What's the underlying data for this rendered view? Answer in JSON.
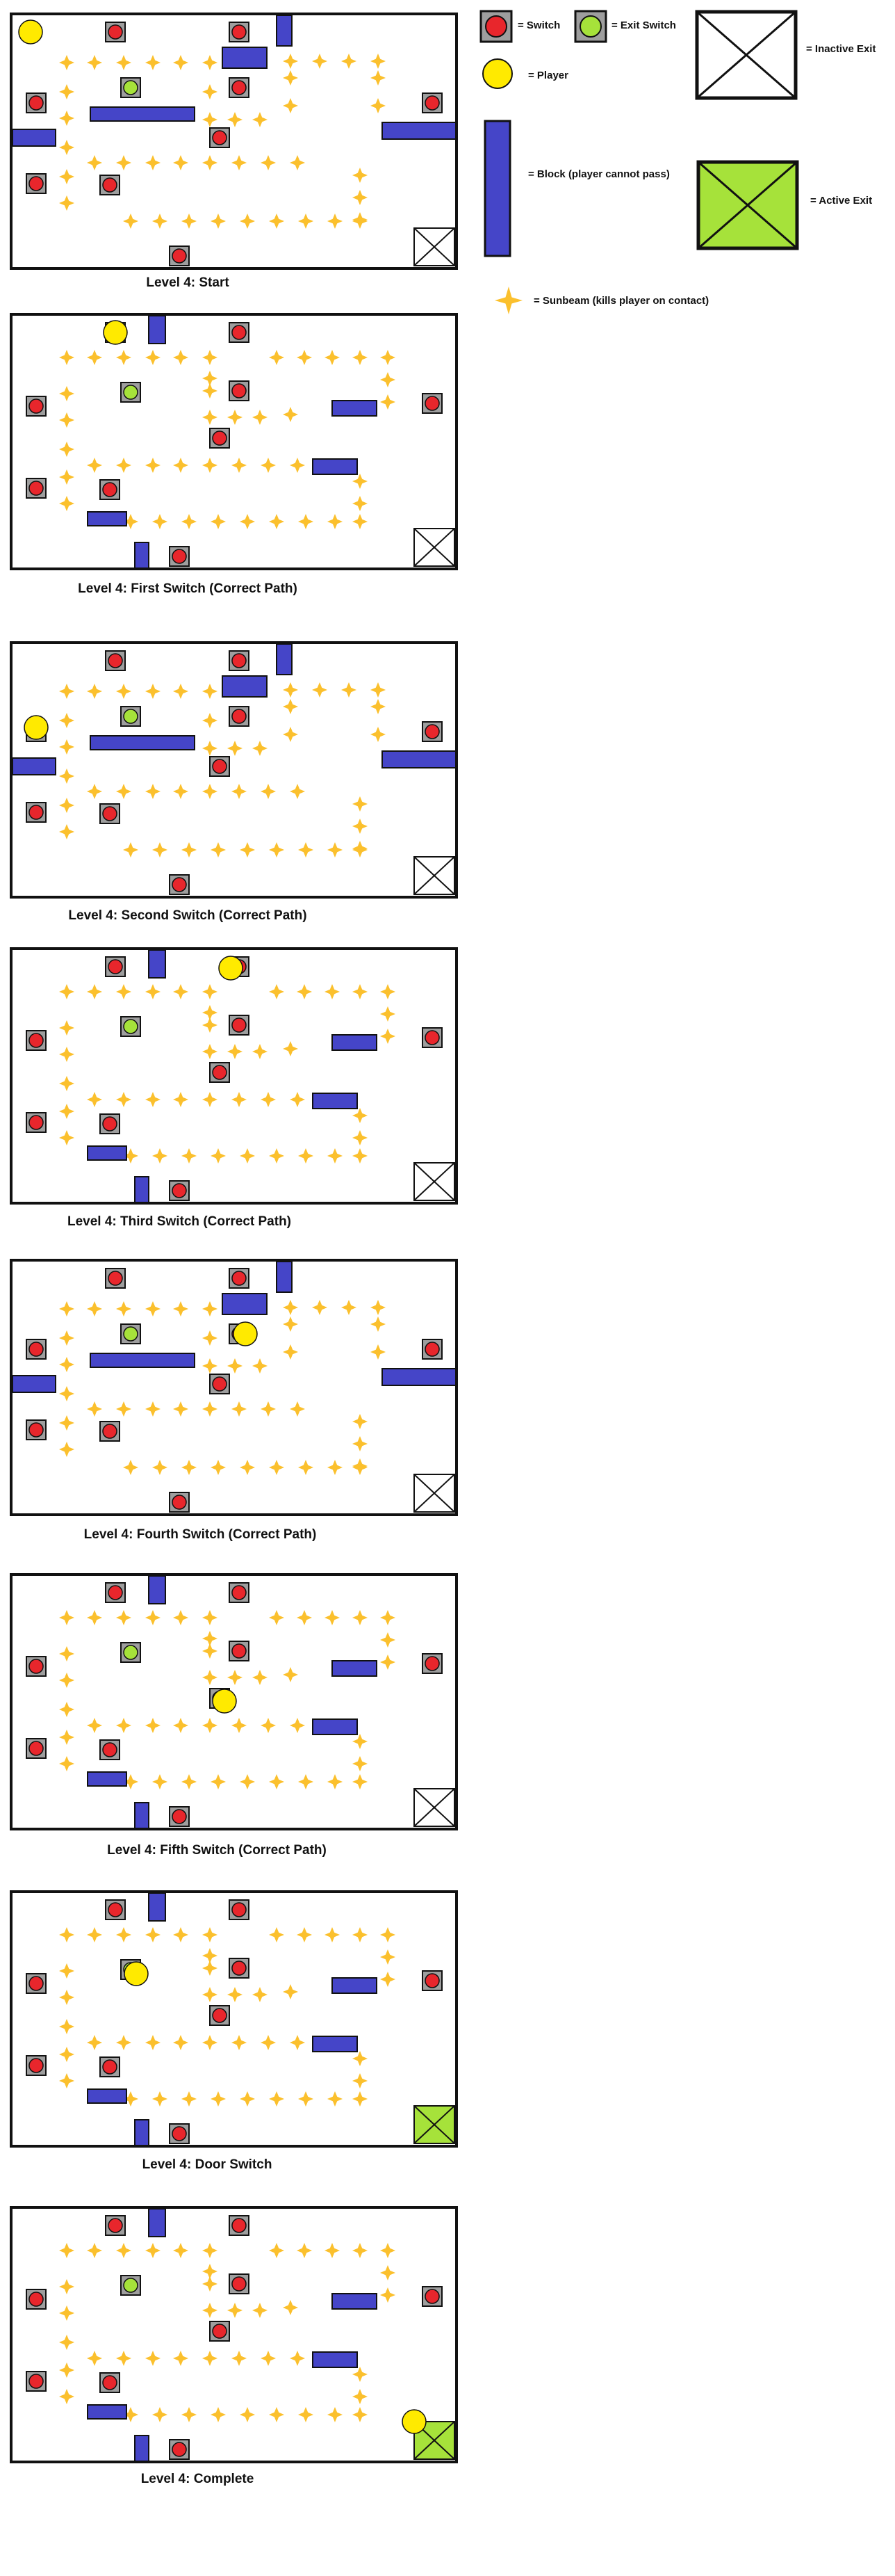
{
  "legend": {
    "switch": "= Switch",
    "exit_switch": "= Exit Switch",
    "player": "= Player",
    "block": "= Block (player cannot pass)",
    "sunbeam": "= Sunbeam (kills player on contact)",
    "inactive_exit": "= Inactive Exit",
    "active_exit": "= Active Exit"
  },
  "colors": {
    "switch_red": "#e8262c",
    "exit_switch_green": "#a6e23a",
    "player_yellow": "#ffea00",
    "block_blue": "#4545c8",
    "sunbeam_gold": "#fbc02d",
    "exit_active": "#a6e23a"
  },
  "icons": {
    "switch": "switch-icon",
    "exit_switch": "exit-switch-icon",
    "player": "player-icon",
    "block": "block-icon",
    "sunbeam": "sunbeam-icon",
    "exit": "exit-icon"
  },
  "panels": [
    {
      "caption": "Level 4: Start",
      "layout": "A",
      "player": "start",
      "exit": "inactive"
    },
    {
      "caption": "Level 4: First Switch (Correct Path)",
      "layout": "B",
      "player": "first",
      "exit": "inactive"
    },
    {
      "caption": "Level 4: Second Switch (Correct Path)",
      "layout": "A",
      "player": "second",
      "exit": "inactive"
    },
    {
      "caption": "Level 4: Third Switch (Correct Path)",
      "layout": "B",
      "player": "third",
      "exit": "inactive"
    },
    {
      "caption": "Level 4: Fourth Switch (Correct Path)",
      "layout": "A",
      "player": "fourth",
      "exit": "inactive"
    },
    {
      "caption": "Level 4: Fifth Switch (Correct Path)",
      "layout": "B",
      "player": "fifth",
      "exit": "inactive"
    },
    {
      "caption": "Level 4: Door Switch",
      "layout": "B",
      "player": "door",
      "exit": "active"
    },
    {
      "caption": "Level 4: Complete",
      "layout": "B",
      "player": "complete",
      "exit": "active"
    }
  ]
}
